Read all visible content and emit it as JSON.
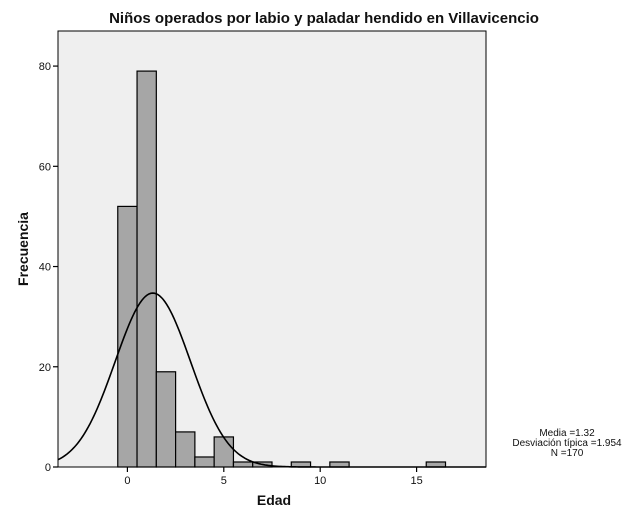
{
  "chart_data": {
    "type": "bar",
    "title": "Niños operados por labio y paladar hendido en Villavicencio",
    "xlabel": "Edad",
    "ylabel": "Frecuencia",
    "xlim": [
      -3.6,
      18.6
    ],
    "ylim": [
      0,
      87
    ],
    "x_ticks": [
      0,
      5,
      10,
      15
    ],
    "y_ticks": [
      0,
      20,
      40,
      60,
      80
    ],
    "bin_width": 1,
    "bins": [
      {
        "x": 0,
        "count": 52
      },
      {
        "x": 1,
        "count": 79
      },
      {
        "x": 2,
        "count": 19
      },
      {
        "x": 3,
        "count": 7
      },
      {
        "x": 4,
        "count": 2
      },
      {
        "x": 5,
        "count": 6
      },
      {
        "x": 6,
        "count": 1
      },
      {
        "x": 7,
        "count": 1
      },
      {
        "x": 9,
        "count": 1
      },
      {
        "x": 11,
        "count": 1
      },
      {
        "x": 16,
        "count": 1
      }
    ],
    "normal_curve": {
      "mean": 1.32,
      "sd": 1.954,
      "n": 170
    },
    "stats": [
      "Media =1.32",
      "Desviación típica =1.954",
      "N =170"
    ],
    "colors": {
      "bar_fill": "#a6a6a6",
      "plot_bg": "#efefef",
      "curve": "#000000"
    },
    "grid": false
  }
}
